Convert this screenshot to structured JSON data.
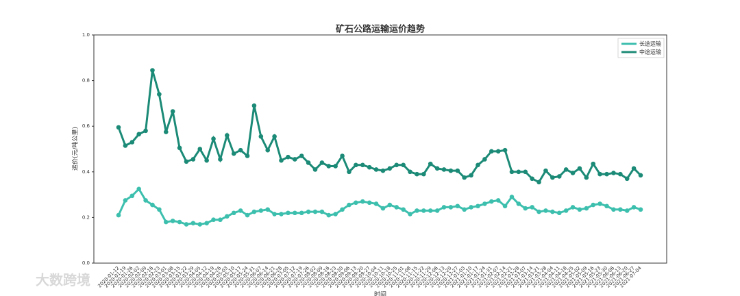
{
  "chart_data": {
    "type": "line",
    "title": "矿石公路运输运价趋势",
    "x_label": "时间",
    "y_label": "运价(元/吨公里)",
    "watermark": "大数跨境",
    "categories": [
      "2020-01-12",
      "2020-01-19",
      "2020-01-26",
      "2020-02-02",
      "2020-02-09",
      "2020-02-16",
      "2020-02-23",
      "2020-03-01",
      "2020-03-08",
      "2020-03-15",
      "2020-03-22",
      "2020-03-29",
      "2020-04-05",
      "2020-04-12",
      "2020-04-19",
      "2020-04-26",
      "2020-05-03",
      "2020-05-10",
      "2020-05-17",
      "2020-05-24",
      "2020-05-31",
      "2020-06-07",
      "2020-06-14",
      "2020-06-21",
      "2020-06-28",
      "2020-07-05",
      "2020-07-12",
      "2020-07-19",
      "2020-07-26",
      "2020-08-02",
      "2020-08-09",
      "2020-08-16",
      "2020-08-23",
      "2020-08-30",
      "2020-09-06",
      "2020-09-13",
      "2020-09-20",
      "2020-09-27",
      "2020-10-04",
      "2020-10-11",
      "2020-10-18",
      "2020-10-25",
      "2020-11-01",
      "2020-11-08",
      "2020-11-15",
      "2020-11-22",
      "2020-11-29",
      "2020-12-06",
      "2020-12-13",
      "2020-12-20",
      "2020-12-27",
      "2021-01-03",
      "2021-01-10",
      "2021-01-17",
      "2021-01-24",
      "2021-01-31",
      "2021-02-07",
      "2021-02-14",
      "2021-02-21",
      "2021-02-28",
      "2021-03-07",
      "2021-03-14",
      "2021-03-21",
      "2021-03-28",
      "2021-04-04",
      "2021-04-11",
      "2021-04-18",
      "2021-04-25",
      "2021-05-02",
      "2021-05-09",
      "2021-05-16",
      "2021-05-23",
      "2021-05-30",
      "2021-06-06",
      "2021-06-13",
      "2021-06-20",
      "2021-06-27",
      "2021-07-04"
    ],
    "series": [
      {
        "name": "长途运输",
        "color": "#3dbfae",
        "values": [
          0.21,
          0.275,
          0.295,
          0.325,
          0.275,
          0.255,
          0.235,
          0.18,
          0.185,
          0.18,
          0.17,
          0.175,
          0.17,
          0.175,
          0.19,
          0.19,
          0.205,
          0.22,
          0.23,
          0.21,
          0.225,
          0.23,
          0.235,
          0.215,
          0.215,
          0.22,
          0.22,
          0.22,
          0.225,
          0.225,
          0.225,
          0.21,
          0.215,
          0.235,
          0.255,
          0.265,
          0.27,
          0.265,
          0.26,
          0.24,
          0.255,
          0.245,
          0.235,
          0.215,
          0.23,
          0.23,
          0.23,
          0.23,
          0.245,
          0.245,
          0.25,
          0.235,
          0.245,
          0.25,
          0.26,
          0.27,
          0.275,
          0.25,
          0.29,
          0.26,
          0.24,
          0.245,
          0.225,
          0.23,
          0.225,
          0.22,
          0.23,
          0.245,
          0.235,
          0.24,
          0.255,
          0.26,
          0.25,
          0.235,
          0.235,
          0.23,
          0.245,
          0.235
        ]
      },
      {
        "name": "中途运输",
        "color": "#1b8a76",
        "values": [
          0.595,
          0.515,
          0.53,
          0.565,
          0.58,
          0.845,
          0.74,
          0.575,
          0.665,
          0.505,
          0.445,
          0.455,
          0.5,
          0.45,
          0.545,
          0.455,
          0.56,
          0.48,
          0.495,
          0.47,
          0.69,
          0.555,
          0.495,
          0.555,
          0.45,
          0.465,
          0.455,
          0.47,
          0.44,
          0.41,
          0.44,
          0.425,
          0.425,
          0.47,
          0.4,
          0.43,
          0.43,
          0.42,
          0.41,
          0.405,
          0.415,
          0.43,
          0.43,
          0.4,
          0.39,
          0.39,
          0.435,
          0.415,
          0.41,
          0.405,
          0.405,
          0.375,
          0.385,
          0.43,
          0.455,
          0.49,
          0.49,
          0.495,
          0.4,
          0.4,
          0.4,
          0.37,
          0.355,
          0.405,
          0.375,
          0.38,
          0.41,
          0.395,
          0.415,
          0.375,
          0.435,
          0.39,
          0.39,
          0.395,
          0.39,
          0.37,
          0.415,
          0.385
        ]
      }
    ],
    "ylim": [
      0,
      1
    ],
    "yticks": [
      {
        "value": 0,
        "label": "0.0"
      },
      {
        "value": 0.2,
        "label": "0.2"
      },
      {
        "value": 0.4,
        "label": "0.4"
      },
      {
        "value": 0.6,
        "label": "0.6"
      },
      {
        "value": 0.8,
        "label": "0.8"
      },
      {
        "value": 1,
        "label": "1.0"
      }
    ],
    "legend": "upper right",
    "grid": false
  }
}
